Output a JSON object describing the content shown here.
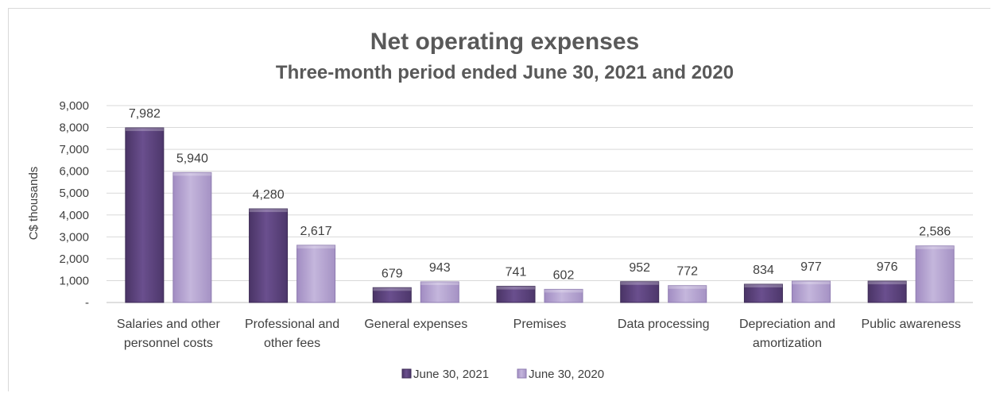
{
  "chart_data": {
    "type": "bar",
    "title": "Net operating expenses",
    "subtitle": "Three-month period ended June 30, 2021 and 2020",
    "ylabel": "C$ thousands",
    "xlabel": "",
    "ylim": [
      0,
      9000
    ],
    "yticks": [
      "-",
      "1,000",
      "2,000",
      "3,000",
      "4,000",
      "5,000",
      "6,000",
      "7,000",
      "8,000",
      "9,000"
    ],
    "grid": true,
    "legend_position": "bottom",
    "categories": [
      [
        "Salaries and other",
        "personnel costs"
      ],
      [
        "Professional and",
        "other fees"
      ],
      [
        "General expenses"
      ],
      [
        "Premises"
      ],
      [
        "Data processing"
      ],
      [
        "Depreciation and",
        "amortization"
      ],
      [
        "Public awareness"
      ]
    ],
    "series": [
      {
        "name": "June 30, 2021",
        "color": "#5f4680",
        "values": [
          7982,
          4280,
          679,
          741,
          952,
          834,
          976
        ],
        "labels": [
          "7,982",
          "4,280",
          "679",
          "741",
          "952",
          "834",
          "976"
        ]
      },
      {
        "name": "June 30, 2020",
        "color": "#b3a2d0",
        "values": [
          5940,
          2617,
          943,
          602,
          772,
          977,
          2586
        ],
        "labels": [
          "5,940",
          "2,617",
          "943",
          "602",
          "772",
          "977",
          "2,586"
        ]
      }
    ]
  }
}
